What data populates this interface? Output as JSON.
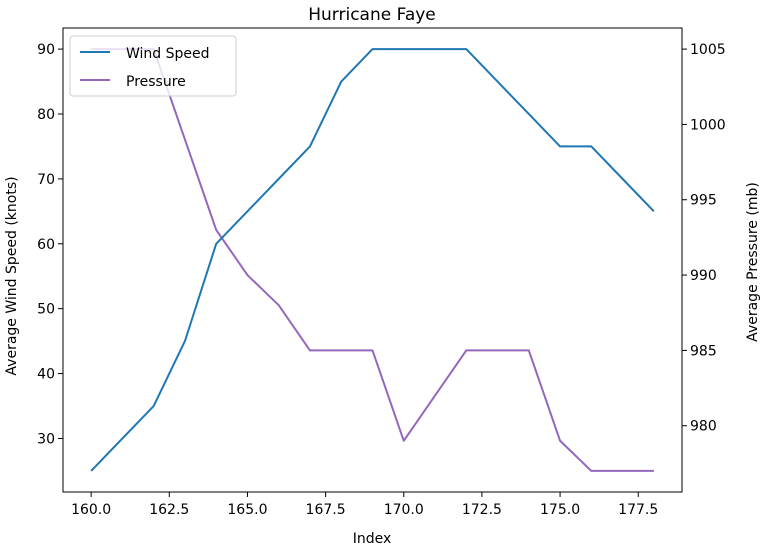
{
  "chart_data": {
    "type": "line",
    "title": "Hurricane Faye",
    "xlabel": "Index",
    "ylabel": "Average Wind Speed (knots)",
    "y2label": "Average Pressure (mb)",
    "xlim": [
      159.1,
      178.9
    ],
    "ylim": [
      21.75,
      93.25
    ],
    "y2lim": [
      975.6,
      1006.4
    ],
    "xticks": [
      160.0,
      162.5,
      165.0,
      167.5,
      170.0,
      172.5,
      175.0,
      177.5
    ],
    "xtick_labels": [
      "160.0",
      "162.5",
      "165.0",
      "167.5",
      "170.0",
      "172.5",
      "175.0",
      "177.5"
    ],
    "yticks": [
      30,
      40,
      50,
      60,
      70,
      80,
      90
    ],
    "ytick_labels": [
      "30",
      "40",
      "50",
      "60",
      "70",
      "80",
      "90"
    ],
    "y2ticks": [
      980,
      985,
      990,
      995,
      1000,
      1005
    ],
    "y2tick_labels": [
      "980",
      "985",
      "990",
      "995",
      "1000",
      "1005"
    ],
    "grid": false,
    "legend_position": "upper-left",
    "x": [
      160,
      161,
      162,
      163,
      164,
      165,
      166,
      167,
      168,
      169,
      170,
      171,
      172,
      173,
      174,
      175,
      176,
      177,
      178
    ],
    "series": [
      {
        "name": "Wind Speed",
        "axis": "left",
        "color": "#1f77b4",
        "values": [
          25,
          30,
          35,
          45,
          60,
          65,
          70,
          75,
          85,
          90,
          90,
          90,
          90,
          85,
          80,
          75,
          75,
          70,
          65
        ]
      },
      {
        "name": "Pressure",
        "axis": "right",
        "color": "#9467bd",
        "values": [
          1005,
          1005,
          1005,
          999,
          993,
          990,
          988,
          985,
          985,
          985,
          979,
          982,
          985,
          985,
          985,
          979,
          977,
          977,
          977
        ]
      }
    ]
  }
}
